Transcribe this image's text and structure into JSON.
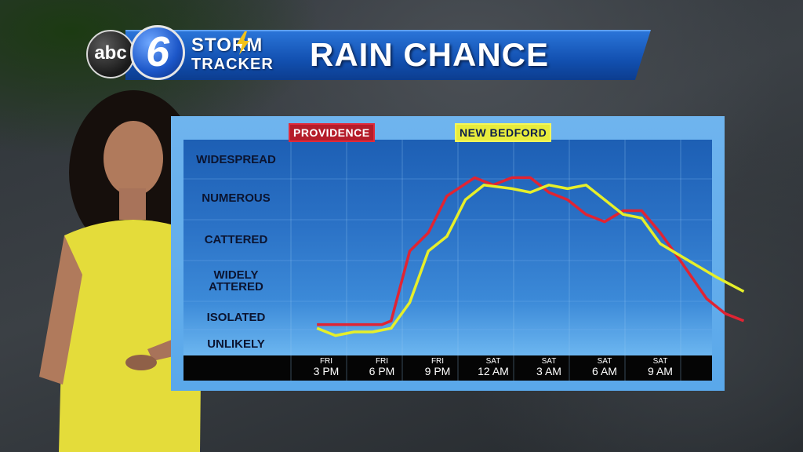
{
  "header": {
    "logo_abc": "abc",
    "logo_six": "6",
    "brand_line1": "STORM",
    "brand_line2": "TRACKER",
    "title": "RAIN CHANCE"
  },
  "colors": {
    "providence": "#e02433",
    "new_bedford": "#e6ef2a"
  },
  "chart_data": {
    "type": "line",
    "title": "RAIN CHANCE",
    "y_levels": [
      "UNLIKELY",
      "ISOLATED",
      "WIDELY SCATTERED",
      "SCATTERED",
      "NUMEROUS",
      "WIDESPREAD"
    ],
    "ylabel_display": [
      {
        "level": "WIDESPREAD",
        "text": "WIDESPREAD"
      },
      {
        "level": "NUMEROUS",
        "text": "NUMEROUS"
      },
      {
        "level": "SCATTERED",
        "text": "CATTERED"
      },
      {
        "level": "WIDELY SCATTERED",
        "text1": "WIDELY",
        "text2": "ATTERED"
      },
      {
        "level": "ISOLATED",
        "text": "ISOLATED"
      },
      {
        "level": "UNLIKELY",
        "text": "UNLIKELY"
      }
    ],
    "x_ticks": [
      {
        "day": "FRI",
        "time": "3 PM"
      },
      {
        "day": "FRI",
        "time": "6 PM"
      },
      {
        "day": "FRI",
        "time": "9 PM"
      },
      {
        "day": "SAT",
        "time": "12 AM"
      },
      {
        "day": "SAT",
        "time": "3 AM"
      },
      {
        "day": "SAT",
        "time": "6 AM"
      },
      {
        "day": "SAT",
        "time": "9 AM"
      }
    ],
    "x_hours_from_fri_3pm_note": "x values in hours relative to FRI 3 PM",
    "series": [
      {
        "name": "PROVIDENCE",
        "color": "#e02433",
        "points": [
          [
            -0.5,
            1.0
          ],
          [
            1,
            1.0
          ],
          [
            2,
            1.0
          ],
          [
            3,
            1.0
          ],
          [
            3.5,
            1.1
          ],
          [
            4.5,
            3.0
          ],
          [
            5.5,
            3.5
          ],
          [
            6.5,
            4.5
          ],
          [
            8,
            5.0
          ],
          [
            9,
            4.8
          ],
          [
            10,
            5.0
          ],
          [
            11,
            5.0
          ],
          [
            12,
            4.6
          ],
          [
            13,
            4.4
          ],
          [
            14,
            4.0
          ],
          [
            15,
            3.8
          ],
          [
            16,
            4.1
          ],
          [
            17,
            4.1
          ],
          [
            18,
            3.5
          ],
          [
            19,
            2.8
          ],
          [
            20.5,
            1.7
          ],
          [
            21.5,
            1.3
          ],
          [
            22.5,
            1.1
          ]
        ]
      },
      {
        "name": "NEW BEDFORD",
        "color": "#e6ef2a",
        "points": [
          [
            -0.5,
            0.9
          ],
          [
            0.5,
            0.7
          ],
          [
            1.5,
            0.8
          ],
          [
            2.5,
            0.8
          ],
          [
            3.5,
            0.9
          ],
          [
            4.5,
            1.6
          ],
          [
            5.5,
            3.0
          ],
          [
            6.5,
            3.4
          ],
          [
            7.5,
            4.4
          ],
          [
            8.5,
            4.8
          ],
          [
            10,
            4.7
          ],
          [
            11,
            4.6
          ],
          [
            12,
            4.8
          ],
          [
            13,
            4.7
          ],
          [
            14,
            4.8
          ],
          [
            15,
            4.4
          ],
          [
            16,
            4.0
          ],
          [
            17,
            3.9
          ],
          [
            18,
            3.2
          ],
          [
            19,
            2.9
          ],
          [
            20,
            2.6
          ],
          [
            21,
            2.3
          ],
          [
            22.5,
            1.9
          ]
        ]
      }
    ],
    "ylim": [
      0.5,
      5.5
    ],
    "grid": true,
    "legend": "top"
  }
}
